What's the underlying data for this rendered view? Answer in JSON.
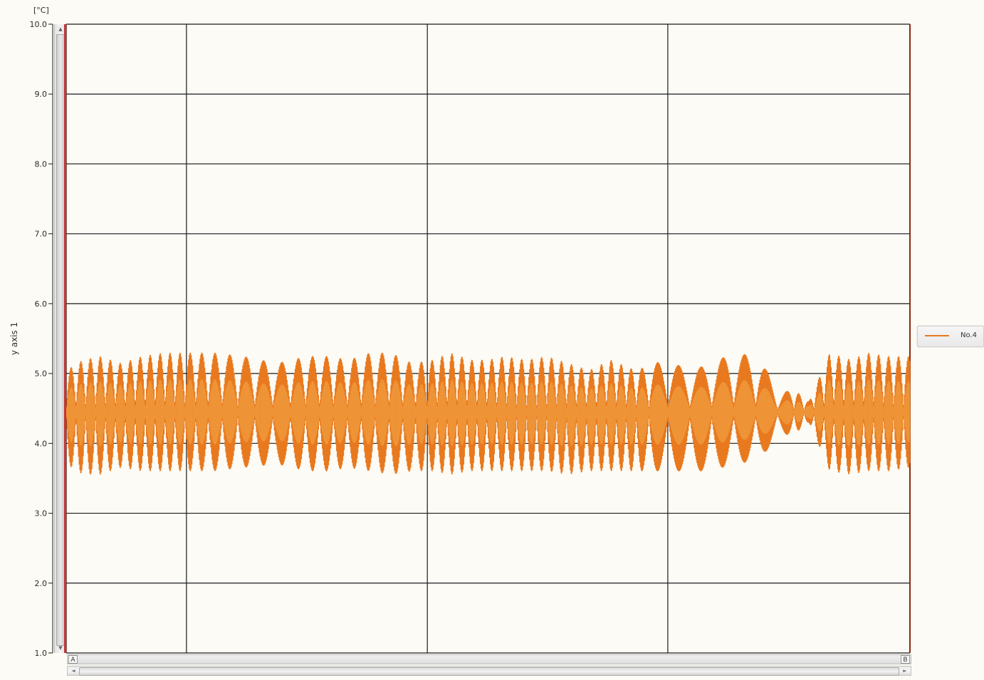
{
  "chart_data": {
    "type": "line",
    "unit_label": "[°C]",
    "ylabel": "y axis 1",
    "xlabel": "",
    "title": "",
    "ylim": [
      1.0,
      10.0
    ],
    "yticks": [
      "1.0",
      "2.0",
      "3.0",
      "4.0",
      "5.0",
      "6.0",
      "7.0",
      "8.0",
      "9.0",
      "10.0"
    ],
    "grid": true,
    "legend_position": "right",
    "series": [
      {
        "name": "No.4",
        "color": "#e8791e",
        "baseline": 4.45,
        "x": [
          0,
          0.02,
          0.04,
          0.065,
          0.09,
          0.115,
          0.14,
          0.175,
          0.21,
          0.25,
          0.285,
          0.31,
          0.335,
          0.36,
          0.385,
          0.41,
          0.435,
          0.455,
          0.48,
          0.5,
          0.52,
          0.545,
          0.57,
          0.595,
          0.62,
          0.645,
          0.675,
          0.71,
          0.74,
          0.765,
          0.79,
          0.82,
          0.845,
          0.865,
          0.88,
          0.905,
          0.93,
          0.95,
          0.975,
          1.0
        ],
        "y_max": [
          5.05,
          5.2,
          5.25,
          5.15,
          5.25,
          5.3,
          5.3,
          5.3,
          5.25,
          5.15,
          5.25,
          5.25,
          5.2,
          5.3,
          5.3,
          5.15,
          5.2,
          5.3,
          5.2,
          5.2,
          5.25,
          5.2,
          5.25,
          5.15,
          5.05,
          5.2,
          5.05,
          5.2,
          5.05,
          5.15,
          5.3,
          5.25,
          4.75,
          4.75,
          4.6,
          5.3,
          5.2,
          5.3,
          5.25,
          5.25
        ],
        "y_min": [
          3.7,
          3.55,
          3.55,
          3.65,
          3.6,
          3.6,
          3.6,
          3.6,
          3.65,
          3.7,
          3.6,
          3.6,
          3.65,
          3.6,
          3.55,
          3.6,
          3.6,
          3.55,
          3.6,
          3.6,
          3.6,
          3.6,
          3.6,
          3.55,
          3.6,
          3.6,
          3.6,
          3.6,
          3.6,
          3.6,
          3.7,
          3.75,
          4.1,
          4.15,
          4.3,
          3.6,
          3.55,
          3.6,
          3.6,
          3.65
        ],
        "envelope_period": [
          0.0115,
          0.0115,
          0.0118,
          0.0118,
          0.0118,
          0.0118,
          0.0118,
          0.0165,
          0.02,
          0.022,
          0.0165,
          0.0165,
          0.0165,
          0.0165,
          0.0165,
          0.015,
          0.0118,
          0.0118,
          0.0118,
          0.0118,
          0.0118,
          0.0118,
          0.0118,
          0.0118,
          0.0118,
          0.0118,
          0.0118,
          0.026,
          0.026,
          0.026,
          0.026,
          0.026,
          0.026,
          0.0118,
          0.0118,
          0.0118,
          0.0118,
          0.0118,
          0.0118,
          0.0118
        ]
      }
    ]
  },
  "legend": {
    "items": [
      {
        "label": "No.4",
        "color": "#e8791e"
      }
    ]
  },
  "cursors": {
    "a_label": "A",
    "b_label": "B"
  },
  "scrollbar": {
    "up_arrow": "▲",
    "down_arrow": "▼",
    "left_arrow": "◄",
    "right_arrow": "►"
  },
  "colors": {
    "background": "#fcfbf5",
    "grid": "#1a1a1a",
    "series": "#e8791e",
    "series_light": "#f3a94a",
    "marker": "#c93434"
  }
}
